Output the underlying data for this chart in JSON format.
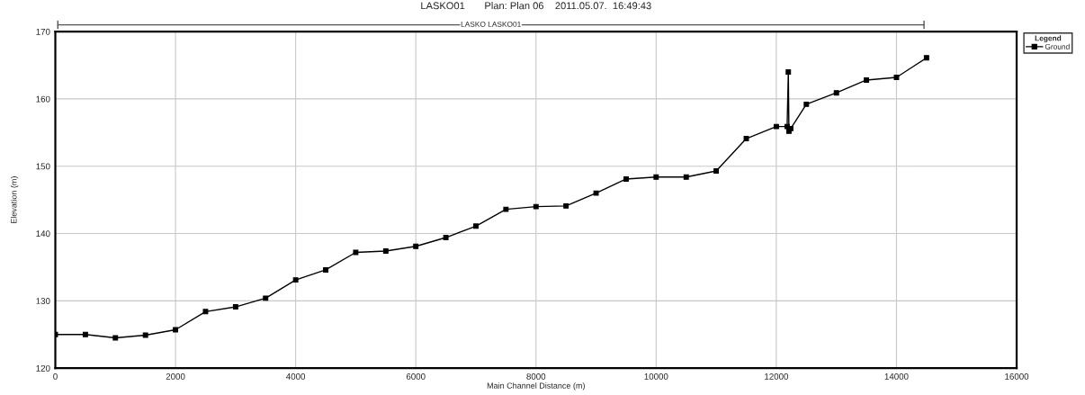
{
  "chart_data": {
    "type": "line",
    "title": "LASKO01       Plan: Plan 06    2011.05.07.  16:49:43",
    "xlabel": "Main Channel Distance (m)",
    "ylabel": "Elevation (m)",
    "legend_title": "Legend",
    "annotations": [
      "LASKO LASKO01"
    ],
    "x": [
      0,
      500,
      1000,
      1500,
      2000,
      2500,
      3000,
      3500,
      4000,
      4500,
      5000,
      5500,
      6000,
      6500,
      7000,
      7500,
      8000,
      8500,
      9000,
      9500,
      10000,
      10500,
      11000,
      11500,
      12000,
      12180,
      12200,
      12210,
      12240,
      12500,
      13000,
      13500,
      14000,
      14500
    ],
    "series": [
      {
        "name": "Ground",
        "color": "#000000",
        "values": [
          125.0,
          125.0,
          124.5,
          124.9,
          125.7,
          128.4,
          129.1,
          130.4,
          133.1,
          134.6,
          137.2,
          137.4,
          138.1,
          139.4,
          141.1,
          143.6,
          144.0,
          144.1,
          146.0,
          148.1,
          148.4,
          148.4,
          149.3,
          154.1,
          155.9,
          155.9,
          164.0,
          155.2,
          155.6,
          159.2,
          160.9,
          162.8,
          163.2,
          166.1
        ]
      }
    ],
    "xlim": [
      0,
      16000
    ],
    "ylim": [
      120,
      170
    ],
    "xticks": [
      0,
      2000,
      4000,
      6000,
      8000,
      10000,
      12000,
      14000,
      16000
    ],
    "yticks": [
      120,
      130,
      140,
      150,
      160,
      170
    ],
    "grid": true,
    "legend": "top right",
    "marker": "square",
    "line_style": "solid"
  }
}
